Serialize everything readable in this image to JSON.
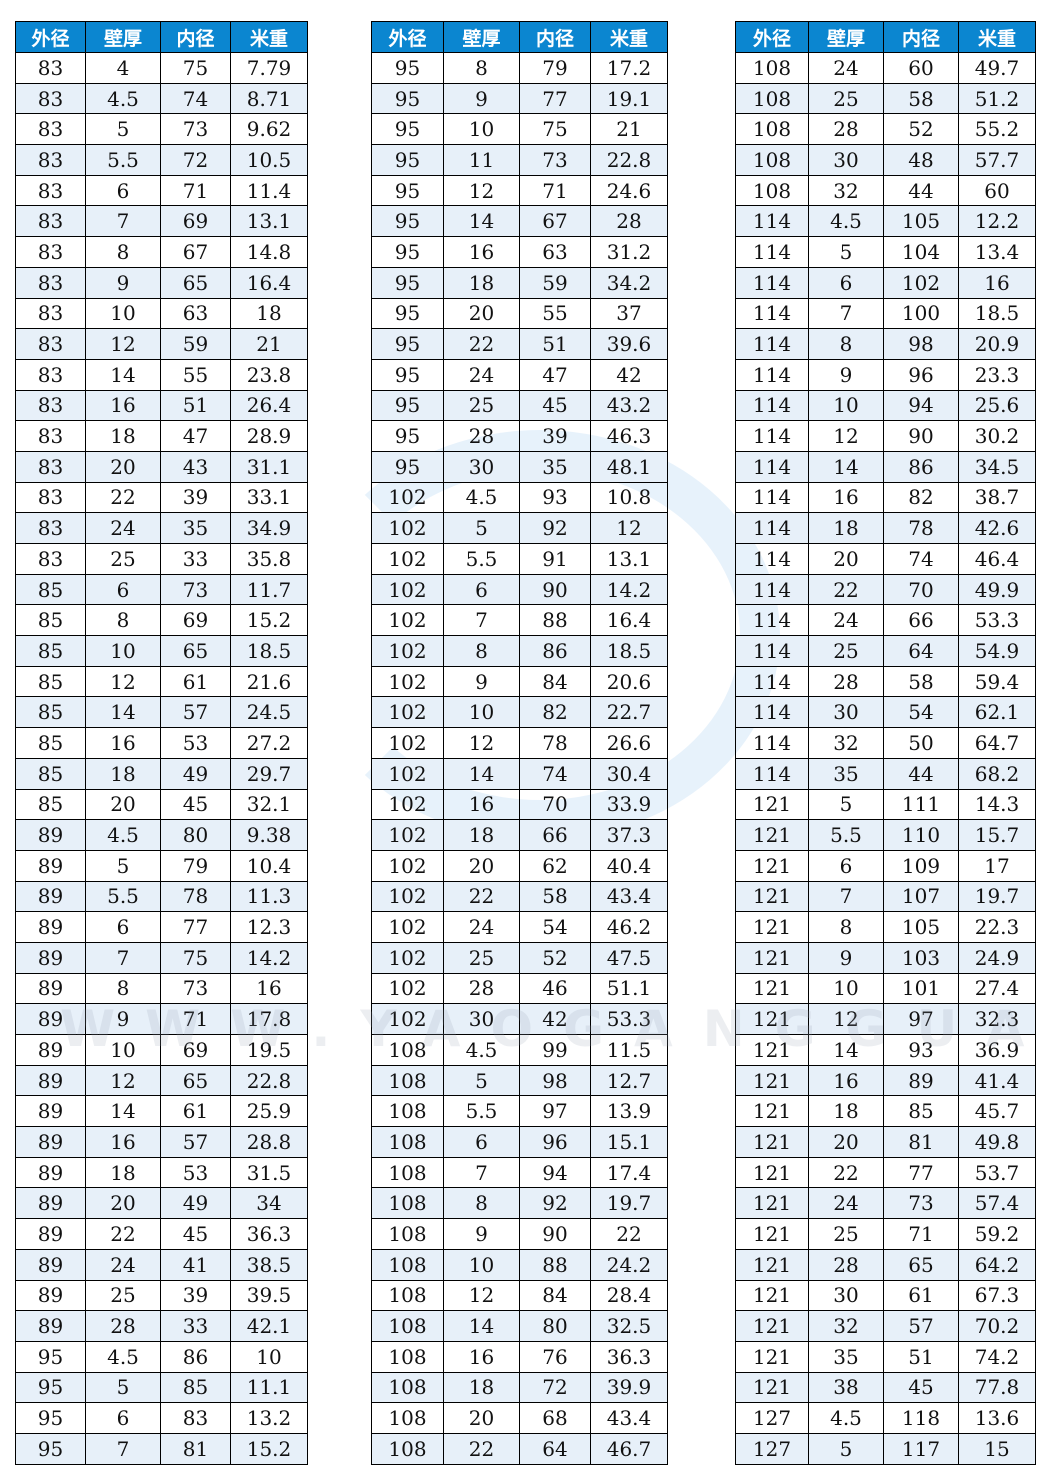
{
  "colors": {
    "header_bg": "#0b86d0",
    "header_text": "#ffffff",
    "alt_row": "#e7f0f9"
  },
  "headers": [
    "外径",
    "壁厚",
    "内径",
    "米重"
  ],
  "watermark": "WWW.YAOGANGGUAN.CN",
  "tables": [
    {
      "rows": [
        [
          "83",
          "4",
          "75",
          "7.79"
        ],
        [
          "83",
          "4.5",
          "74",
          "8.71"
        ],
        [
          "83",
          "5",
          "73",
          "9.62"
        ],
        [
          "83",
          "5.5",
          "72",
          "10.5"
        ],
        [
          "83",
          "6",
          "71",
          "11.4"
        ],
        [
          "83",
          "7",
          "69",
          "13.1"
        ],
        [
          "83",
          "8",
          "67",
          "14.8"
        ],
        [
          "83",
          "9",
          "65",
          "16.4"
        ],
        [
          "83",
          "10",
          "63",
          "18"
        ],
        [
          "83",
          "12",
          "59",
          "21"
        ],
        [
          "83",
          "14",
          "55",
          "23.8"
        ],
        [
          "83",
          "16",
          "51",
          "26.4"
        ],
        [
          "83",
          "18",
          "47",
          "28.9"
        ],
        [
          "83",
          "20",
          "43",
          "31.1"
        ],
        [
          "83",
          "22",
          "39",
          "33.1"
        ],
        [
          "83",
          "24",
          "35",
          "34.9"
        ],
        [
          "83",
          "25",
          "33",
          "35.8"
        ],
        [
          "85",
          "6",
          "73",
          "11.7"
        ],
        [
          "85",
          "8",
          "69",
          "15.2"
        ],
        [
          "85",
          "10",
          "65",
          "18.5"
        ],
        [
          "85",
          "12",
          "61",
          "21.6"
        ],
        [
          "85",
          "14",
          "57",
          "24.5"
        ],
        [
          "85",
          "16",
          "53",
          "27.2"
        ],
        [
          "85",
          "18",
          "49",
          "29.7"
        ],
        [
          "85",
          "20",
          "45",
          "32.1"
        ],
        [
          "89",
          "4.5",
          "80",
          "9.38"
        ],
        [
          "89",
          "5",
          "79",
          "10.4"
        ],
        [
          "89",
          "5.5",
          "78",
          "11.3"
        ],
        [
          "89",
          "6",
          "77",
          "12.3"
        ],
        [
          "89",
          "7",
          "75",
          "14.2"
        ],
        [
          "89",
          "8",
          "73",
          "16"
        ],
        [
          "89",
          "9",
          "71",
          "17.8"
        ],
        [
          "89",
          "10",
          "69",
          "19.5"
        ],
        [
          "89",
          "12",
          "65",
          "22.8"
        ],
        [
          "89",
          "14",
          "61",
          "25.9"
        ],
        [
          "89",
          "16",
          "57",
          "28.8"
        ],
        [
          "89",
          "18",
          "53",
          "31.5"
        ],
        [
          "89",
          "20",
          "49",
          "34"
        ],
        [
          "89",
          "22",
          "45",
          "36.3"
        ],
        [
          "89",
          "24",
          "41",
          "38.5"
        ],
        [
          "89",
          "25",
          "39",
          "39.5"
        ],
        [
          "89",
          "28",
          "33",
          "42.1"
        ],
        [
          "95",
          "4.5",
          "86",
          "10"
        ],
        [
          "95",
          "5",
          "85",
          "11.1"
        ],
        [
          "95",
          "6",
          "83",
          "13.2"
        ],
        [
          "95",
          "7",
          "81",
          "15.2"
        ]
      ]
    },
    {
      "rows": [
        [
          "95",
          "8",
          "79",
          "17.2"
        ],
        [
          "95",
          "9",
          "77",
          "19.1"
        ],
        [
          "95",
          "10",
          "75",
          "21"
        ],
        [
          "95",
          "11",
          "73",
          "22.8"
        ],
        [
          "95",
          "12",
          "71",
          "24.6"
        ],
        [
          "95",
          "14",
          "67",
          "28"
        ],
        [
          "95",
          "16",
          "63",
          "31.2"
        ],
        [
          "95",
          "18",
          "59",
          "34.2"
        ],
        [
          "95",
          "20",
          "55",
          "37"
        ],
        [
          "95",
          "22",
          "51",
          "39.6"
        ],
        [
          "95",
          "24",
          "47",
          "42"
        ],
        [
          "95",
          "25",
          "45",
          "43.2"
        ],
        [
          "95",
          "28",
          "39",
          "46.3"
        ],
        [
          "95",
          "30",
          "35",
          "48.1"
        ],
        [
          "102",
          "4.5",
          "93",
          "10.8"
        ],
        [
          "102",
          "5",
          "92",
          "12"
        ],
        [
          "102",
          "5.5",
          "91",
          "13.1"
        ],
        [
          "102",
          "6",
          "90",
          "14.2"
        ],
        [
          "102",
          "7",
          "88",
          "16.4"
        ],
        [
          "102",
          "8",
          "86",
          "18.5"
        ],
        [
          "102",
          "9",
          "84",
          "20.6"
        ],
        [
          "102",
          "10",
          "82",
          "22.7"
        ],
        [
          "102",
          "12",
          "78",
          "26.6"
        ],
        [
          "102",
          "14",
          "74",
          "30.4"
        ],
        [
          "102",
          "16",
          "70",
          "33.9"
        ],
        [
          "102",
          "18",
          "66",
          "37.3"
        ],
        [
          "102",
          "20",
          "62",
          "40.4"
        ],
        [
          "102",
          "22",
          "58",
          "43.4"
        ],
        [
          "102",
          "24",
          "54",
          "46.2"
        ],
        [
          "102",
          "25",
          "52",
          "47.5"
        ],
        [
          "102",
          "28",
          "46",
          "51.1"
        ],
        [
          "102",
          "30",
          "42",
          "53.3"
        ],
        [
          "108",
          "4.5",
          "99",
          "11.5"
        ],
        [
          "108",
          "5",
          "98",
          "12.7"
        ],
        [
          "108",
          "5.5",
          "97",
          "13.9"
        ],
        [
          "108",
          "6",
          "96",
          "15.1"
        ],
        [
          "108",
          "7",
          "94",
          "17.4"
        ],
        [
          "108",
          "8",
          "92",
          "19.7"
        ],
        [
          "108",
          "9",
          "90",
          "22"
        ],
        [
          "108",
          "10",
          "88",
          "24.2"
        ],
        [
          "108",
          "12",
          "84",
          "28.4"
        ],
        [
          "108",
          "14",
          "80",
          "32.5"
        ],
        [
          "108",
          "16",
          "76",
          "36.3"
        ],
        [
          "108",
          "18",
          "72",
          "39.9"
        ],
        [
          "108",
          "20",
          "68",
          "43.4"
        ],
        [
          "108",
          "22",
          "64",
          "46.7"
        ]
      ]
    },
    {
      "rows": [
        [
          "108",
          "24",
          "60",
          "49.7"
        ],
        [
          "108",
          "25",
          "58",
          "51.2"
        ],
        [
          "108",
          "28",
          "52",
          "55.2"
        ],
        [
          "108",
          "30",
          "48",
          "57.7"
        ],
        [
          "108",
          "32",
          "44",
          "60"
        ],
        [
          "114",
          "4.5",
          "105",
          "12.2"
        ],
        [
          "114",
          "5",
          "104",
          "13.4"
        ],
        [
          "114",
          "6",
          "102",
          "16"
        ],
        [
          "114",
          "7",
          "100",
          "18.5"
        ],
        [
          "114",
          "8",
          "98",
          "20.9"
        ],
        [
          "114",
          "9",
          "96",
          "23.3"
        ],
        [
          "114",
          "10",
          "94",
          "25.6"
        ],
        [
          "114",
          "12",
          "90",
          "30.2"
        ],
        [
          "114",
          "14",
          "86",
          "34.5"
        ],
        [
          "114",
          "16",
          "82",
          "38.7"
        ],
        [
          "114",
          "18",
          "78",
          "42.6"
        ],
        [
          "114",
          "20",
          "74",
          "46.4"
        ],
        [
          "114",
          "22",
          "70",
          "49.9"
        ],
        [
          "114",
          "24",
          "66",
          "53.3"
        ],
        [
          "114",
          "25",
          "64",
          "54.9"
        ],
        [
          "114",
          "28",
          "58",
          "59.4"
        ],
        [
          "114",
          "30",
          "54",
          "62.1"
        ],
        [
          "114",
          "32",
          "50",
          "64.7"
        ],
        [
          "114",
          "35",
          "44",
          "68.2"
        ],
        [
          "121",
          "5",
          "111",
          "14.3"
        ],
        [
          "121",
          "5.5",
          "110",
          "15.7"
        ],
        [
          "121",
          "6",
          "109",
          "17"
        ],
        [
          "121",
          "7",
          "107",
          "19.7"
        ],
        [
          "121",
          "8",
          "105",
          "22.3"
        ],
        [
          "121",
          "9",
          "103",
          "24.9"
        ],
        [
          "121",
          "10",
          "101",
          "27.4"
        ],
        [
          "121",
          "12",
          "97",
          "32.3"
        ],
        [
          "121",
          "14",
          "93",
          "36.9"
        ],
        [
          "121",
          "16",
          "89",
          "41.4"
        ],
        [
          "121",
          "18",
          "85",
          "45.7"
        ],
        [
          "121",
          "20",
          "81",
          "49.8"
        ],
        [
          "121",
          "22",
          "77",
          "53.7"
        ],
        [
          "121",
          "24",
          "73",
          "57.4"
        ],
        [
          "121",
          "25",
          "71",
          "59.2"
        ],
        [
          "121",
          "28",
          "65",
          "64.2"
        ],
        [
          "121",
          "30",
          "61",
          "67.3"
        ],
        [
          "121",
          "32",
          "57",
          "70.2"
        ],
        [
          "121",
          "35",
          "51",
          "74.2"
        ],
        [
          "121",
          "38",
          "45",
          "77.8"
        ],
        [
          "127",
          "4.5",
          "118",
          "13.6"
        ],
        [
          "127",
          "5",
          "117",
          "15"
        ]
      ]
    }
  ]
}
